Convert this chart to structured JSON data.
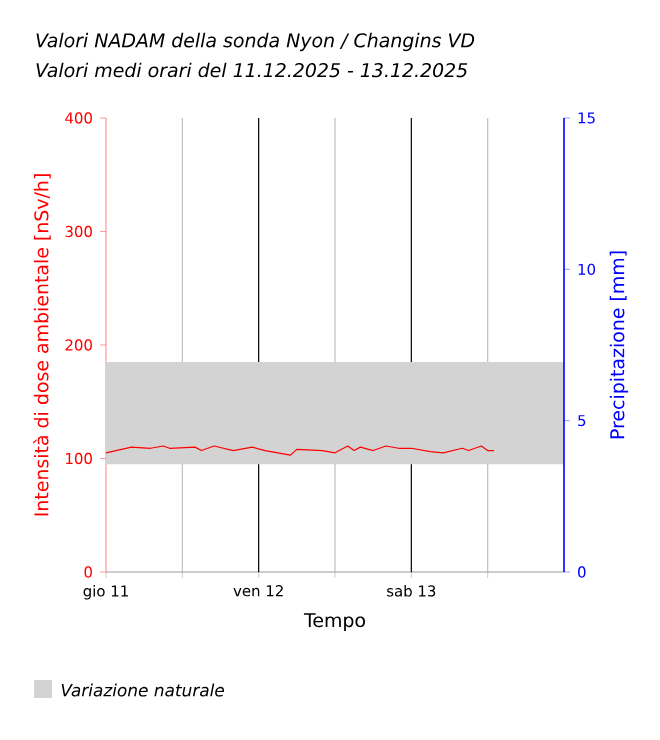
{
  "chart_data": {
    "type": "line",
    "title": "Valori NADAM della sonda Nyon / Changins VD",
    "subtitle": "Valori medi orari del 11.12.2025 - 13.12.2025",
    "xlabel": "Tempo",
    "ylabel": "Intensità di dose ambientale [nSv/h]",
    "y2label": "Precipitazione [mm]",
    "x": [
      "2025-12-11T00:00",
      "2025-12-11T04:00",
      "2025-12-11T07:00",
      "2025-12-11T09:00",
      "2025-12-11T10:00",
      "2025-12-11T14:00",
      "2025-12-11T15:00",
      "2025-12-11T17:00",
      "2025-12-11T20:00",
      "2025-12-11T23:00",
      "2025-12-12T01:00",
      "2025-12-12T03:00",
      "2025-12-12T05:00",
      "2025-12-12T06:00",
      "2025-12-12T10:00",
      "2025-12-12T12:00",
      "2025-12-12T14:00",
      "2025-12-12T15:00",
      "2025-12-12T16:00",
      "2025-12-12T18:00",
      "2025-12-12T20:00",
      "2025-12-12T22:00",
      "2025-12-13T00:00",
      "2025-12-13T03:00",
      "2025-12-13T05:00",
      "2025-12-13T08:00",
      "2025-12-13T09:00",
      "2025-12-13T11:00",
      "2025-12-13T12:00",
      "2025-12-13T13:00"
    ],
    "series": [
      {
        "color": "#ff0000",
        "values": [
          105,
          110,
          109,
          111,
          109,
          110,
          107,
          111,
          107,
          110,
          107,
          105,
          103,
          108,
          107,
          105,
          111,
          107,
          110,
          107,
          111,
          109,
          109,
          106,
          105,
          109,
          107,
          111,
          107,
          107
        ]
      }
    ],
    "xlim": [
      "2025-12-11",
      "2025-12-14"
    ],
    "xticks": [
      {
        "value": "2025-12-11",
        "label": "gio 11"
      },
      {
        "value": "2025-12-11T12:00",
        "label": null
      },
      {
        "value": "2025-12-12",
        "label": "ven 12"
      },
      {
        "value": "2025-12-12T12:00",
        "label": null
      },
      {
        "value": "2025-12-13",
        "label": "sab 13"
      },
      {
        "value": "2025-12-13T12:00",
        "label": null
      }
    ],
    "ylim": [
      0,
      400
    ],
    "yticks": [
      0,
      100,
      200,
      300,
      400
    ],
    "y2lim": [
      0,
      15
    ],
    "y2ticks": [
      0,
      5,
      10,
      15
    ],
    "bands": [
      {
        "axis": "y",
        "from": 95,
        "to": 185,
        "label": "Variazione naturale",
        "color": "#d3d3d3"
      }
    ],
    "grid": "x",
    "legend": "bottom left",
    "marker": "none",
    "line_style": "solid"
  }
}
